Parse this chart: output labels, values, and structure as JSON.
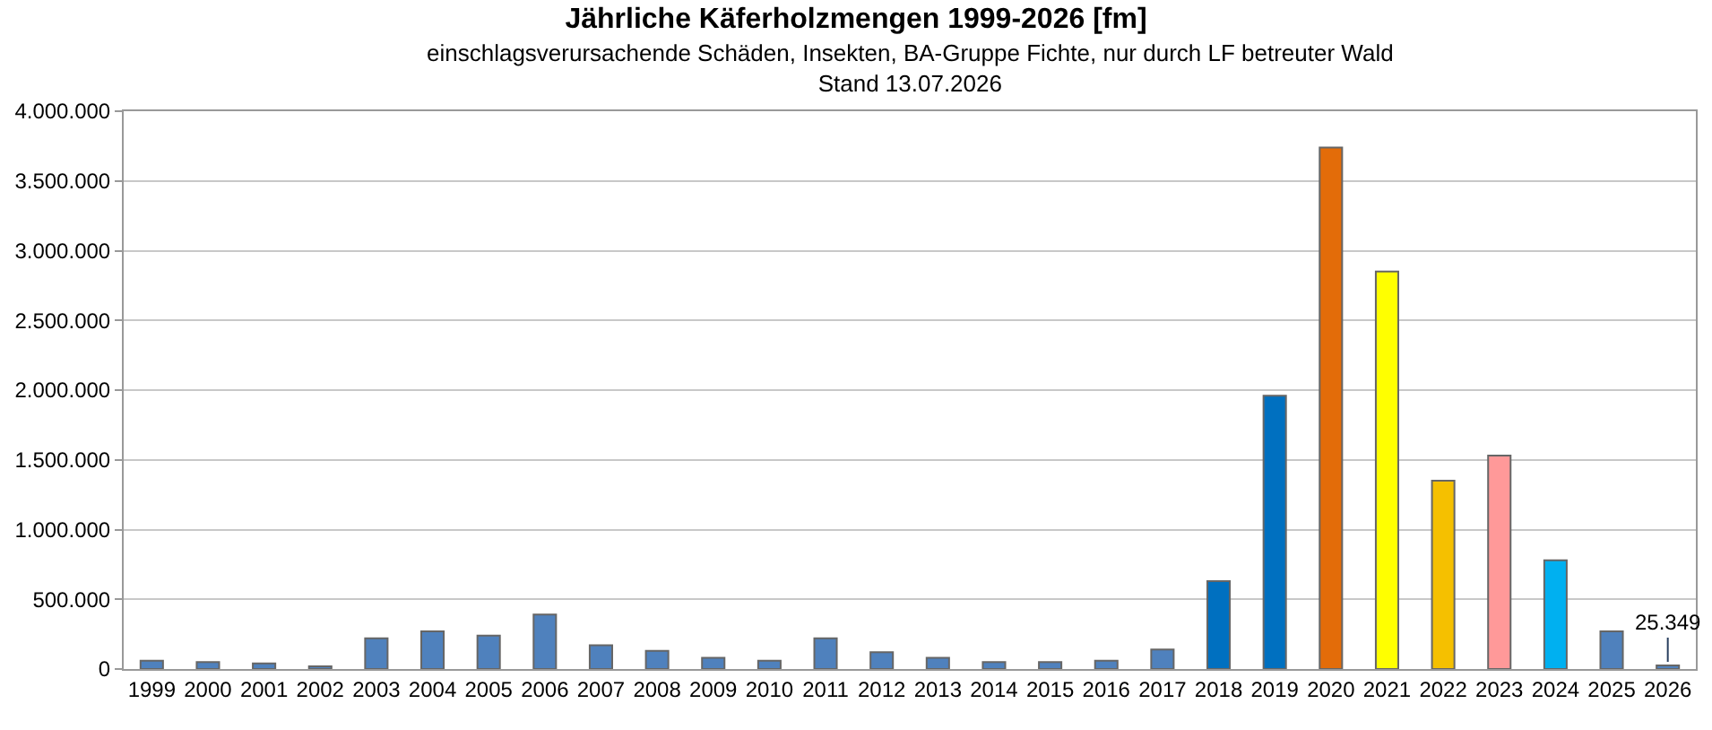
{
  "chart_data": {
    "type": "bar",
    "title": "Jährliche Käferholzmengen 1999-2026 [fm]",
    "subtitle": "einschlagsverursachende Schäden, Insekten, BA-Gruppe Fichte, nur durch LF betreuter Wald\nStand 13.07.2026",
    "categories": [
      "1999",
      "2000",
      "2001",
      "2002",
      "2003",
      "2004",
      "2005",
      "2006",
      "2007",
      "2008",
      "2009",
      "2010",
      "2011",
      "2012",
      "2013",
      "2014",
      "2015",
      "2016",
      "2017",
      "2018",
      "2019",
      "2020",
      "2021",
      "2022",
      "2023",
      "2024",
      "2025",
      "2026"
    ],
    "values": [
      60000,
      50000,
      40000,
      20000,
      220000,
      270000,
      240000,
      390000,
      170000,
      130000,
      80000,
      60000,
      220000,
      120000,
      80000,
      50000,
      50000,
      60000,
      140000,
      630000,
      1960000,
      3740000,
      2850000,
      1350000,
      1530000,
      780000,
      270000,
      25349
    ],
    "colors": [
      "#4f81bd",
      "#4f81bd",
      "#4f81bd",
      "#4f81bd",
      "#4f81bd",
      "#4f81bd",
      "#4f81bd",
      "#4f81bd",
      "#4f81bd",
      "#4f81bd",
      "#4f81bd",
      "#4f81bd",
      "#4f81bd",
      "#4f81bd",
      "#4f81bd",
      "#4f81bd",
      "#4f81bd",
      "#4f81bd",
      "#4f81bd",
      "#0070c0",
      "#0070c0",
      "#e36c09",
      "#ffff00",
      "#f5c000",
      "#ff9999",
      "#00b0f0",
      "#4f81bd",
      "#4f81bd"
    ],
    "value_labels": [
      null,
      null,
      null,
      null,
      null,
      null,
      null,
      null,
      null,
      null,
      null,
      null,
      null,
      null,
      null,
      null,
      null,
      null,
      null,
      null,
      null,
      null,
      null,
      null,
      null,
      null,
      null,
      "25.349"
    ],
    "ylim": [
      0,
      4000000
    ],
    "yticks": [
      {
        "value": 0,
        "label": "0"
      },
      {
        "value": 500000,
        "label": "500.000"
      },
      {
        "value": 1000000,
        "label": "1.000.000"
      },
      {
        "value": 1500000,
        "label": "1.500.000"
      },
      {
        "value": 2000000,
        "label": "2.000.000"
      },
      {
        "value": 2500000,
        "label": "2.500.000"
      },
      {
        "value": 3000000,
        "label": "3.000.000"
      },
      {
        "value": 3500000,
        "label": "3.500.000"
      },
      {
        "value": 4000000,
        "label": "4.000.000"
      }
    ],
    "grid": "y",
    "legend": false
  }
}
